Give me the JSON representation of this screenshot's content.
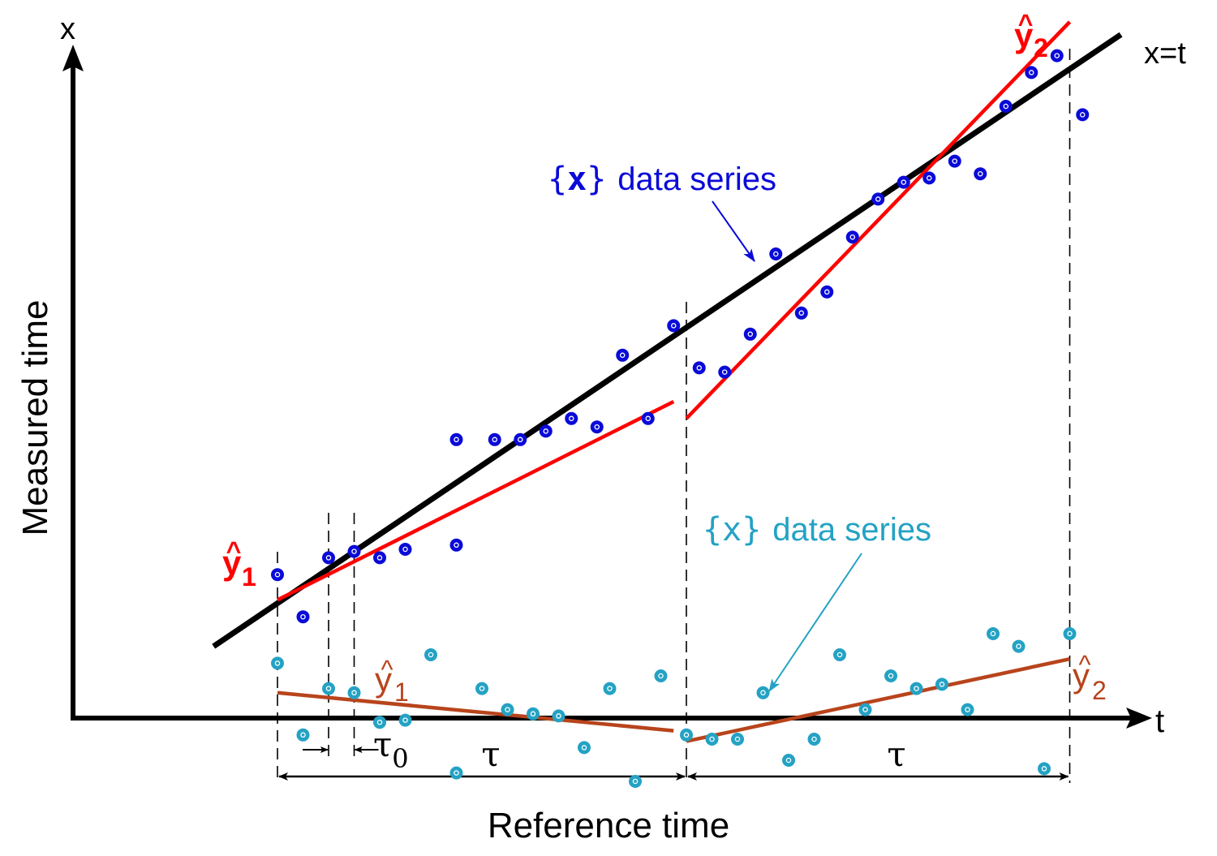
{
  "labels": {
    "x_axis_symbol": "x",
    "t_axis_symbol": "t",
    "y_axis_title": "Measured time",
    "x_axis_title": "Reference time",
    "identity_line_label": "x=t",
    "tau": "τ",
    "tau0_base": "τ",
    "tau0_sub": "0",
    "yhat_base": "y",
    "yhat_sub1": "1",
    "yhat_sub2": "2",
    "hat": "^",
    "x_series_brace_open": "{",
    "x_series_brace_var": "x",
    "x_series_brace_close": "}",
    "x_series_text": "data series"
  },
  "colors": {
    "axis": "#000000",
    "blue_series": "#0a0ad8",
    "cyan_series": "#24a2c4",
    "red_fit": "#ff0000",
    "brown_fit": "#b8441c",
    "guide": "#000000"
  },
  "chart_data": {
    "type": "scatter",
    "series": [
      {
        "name": "{x} data series",
        "color": "#0a0ad8",
        "points": [
          [
            1.0,
            3.4
          ],
          [
            1.1,
            2.4
          ],
          [
            1.2,
            3.8
          ],
          [
            1.3,
            3.95
          ],
          [
            1.4,
            3.8
          ],
          [
            1.5,
            4.0
          ],
          [
            1.7,
            4.1
          ],
          [
            1.7,
            6.6
          ],
          [
            1.85,
            6.6
          ],
          [
            1.95,
            6.6
          ],
          [
            2.05,
            6.8
          ],
          [
            2.15,
            7.1
          ],
          [
            2.25,
            6.9
          ],
          [
            2.35,
            8.6
          ],
          [
            2.45,
            7.1
          ],
          [
            2.55,
            9.3
          ],
          [
            2.65,
            8.3
          ],
          [
            2.75,
            8.2
          ],
          [
            2.85,
            9.1
          ],
          [
            2.95,
            11.0
          ],
          [
            3.05,
            9.6
          ],
          [
            3.15,
            10.1
          ],
          [
            3.25,
            11.4
          ],
          [
            3.35,
            12.3
          ],
          [
            3.45,
            12.7
          ],
          [
            3.55,
            12.8
          ],
          [
            3.65,
            13.2
          ],
          [
            3.75,
            12.9
          ],
          [
            3.85,
            14.5
          ],
          [
            3.95,
            15.3
          ],
          [
            4.05,
            15.7
          ],
          [
            4.15,
            14.3
          ]
        ]
      },
      {
        "name": "{x} data series",
        "color": "#24a2c4",
        "points": [
          [
            1.0,
            1.3
          ],
          [
            1.1,
            -0.4
          ],
          [
            1.2,
            0.7
          ],
          [
            1.3,
            0.6
          ],
          [
            1.4,
            -0.1
          ],
          [
            1.5,
            -0.05
          ],
          [
            1.6,
            1.5
          ],
          [
            1.7,
            -1.3
          ],
          [
            1.8,
            0.7
          ],
          [
            1.9,
            0.2
          ],
          [
            2.0,
            0.1
          ],
          [
            2.1,
            0.05
          ],
          [
            2.2,
            -0.7
          ],
          [
            2.3,
            0.7
          ],
          [
            2.4,
            -1.5
          ],
          [
            2.5,
            1.0
          ],
          [
            2.6,
            -0.4
          ],
          [
            2.7,
            -0.5
          ],
          [
            2.8,
            -0.5
          ],
          [
            2.9,
            0.6
          ],
          [
            3.0,
            -1.0
          ],
          [
            3.1,
            -0.5
          ],
          [
            3.2,
            1.5
          ],
          [
            3.3,
            0.2
          ],
          [
            3.4,
            1.0
          ],
          [
            3.5,
            0.7
          ],
          [
            3.6,
            0.8
          ],
          [
            3.7,
            0.2
          ],
          [
            3.8,
            2.0
          ],
          [
            3.9,
            1.7
          ],
          [
            4.0,
            -1.2
          ],
          [
            4.1,
            2.0
          ]
        ]
      }
    ],
    "fits": [
      {
        "label": "ŷ1",
        "color": "#ff0000",
        "from": [
          1.0,
          2.8
        ],
        "to": [
          2.55,
          7.5
        ]
      },
      {
        "label": "ŷ2",
        "color": "#ff0000",
        "from": [
          2.6,
          7.1
        ],
        "to": [
          4.1,
          16.5
        ]
      },
      {
        "label": "ŷ1",
        "color": "#b8441c",
        "from": [
          1.0,
          0.6
        ],
        "to": [
          2.55,
          -0.3
        ]
      },
      {
        "label": "ŷ2",
        "color": "#b8441c",
        "from": [
          2.6,
          -0.55
        ],
        "to": [
          4.1,
          1.4
        ]
      }
    ],
    "reference_line": {
      "label": "x=t",
      "from": [
        0.75,
        1.7
      ],
      "to": [
        4.3,
        16.2
      ]
    },
    "segments": [
      {
        "label": "τ",
        "from": 1.0,
        "to": 2.6
      },
      {
        "label": "τ",
        "from": 2.6,
        "to": 4.1
      }
    ],
    "tau0_interval": {
      "label": "τ0",
      "from": 1.2,
      "to": 1.3
    },
    "xlabel": "Reference time",
    "ylabel": "Measured time"
  }
}
